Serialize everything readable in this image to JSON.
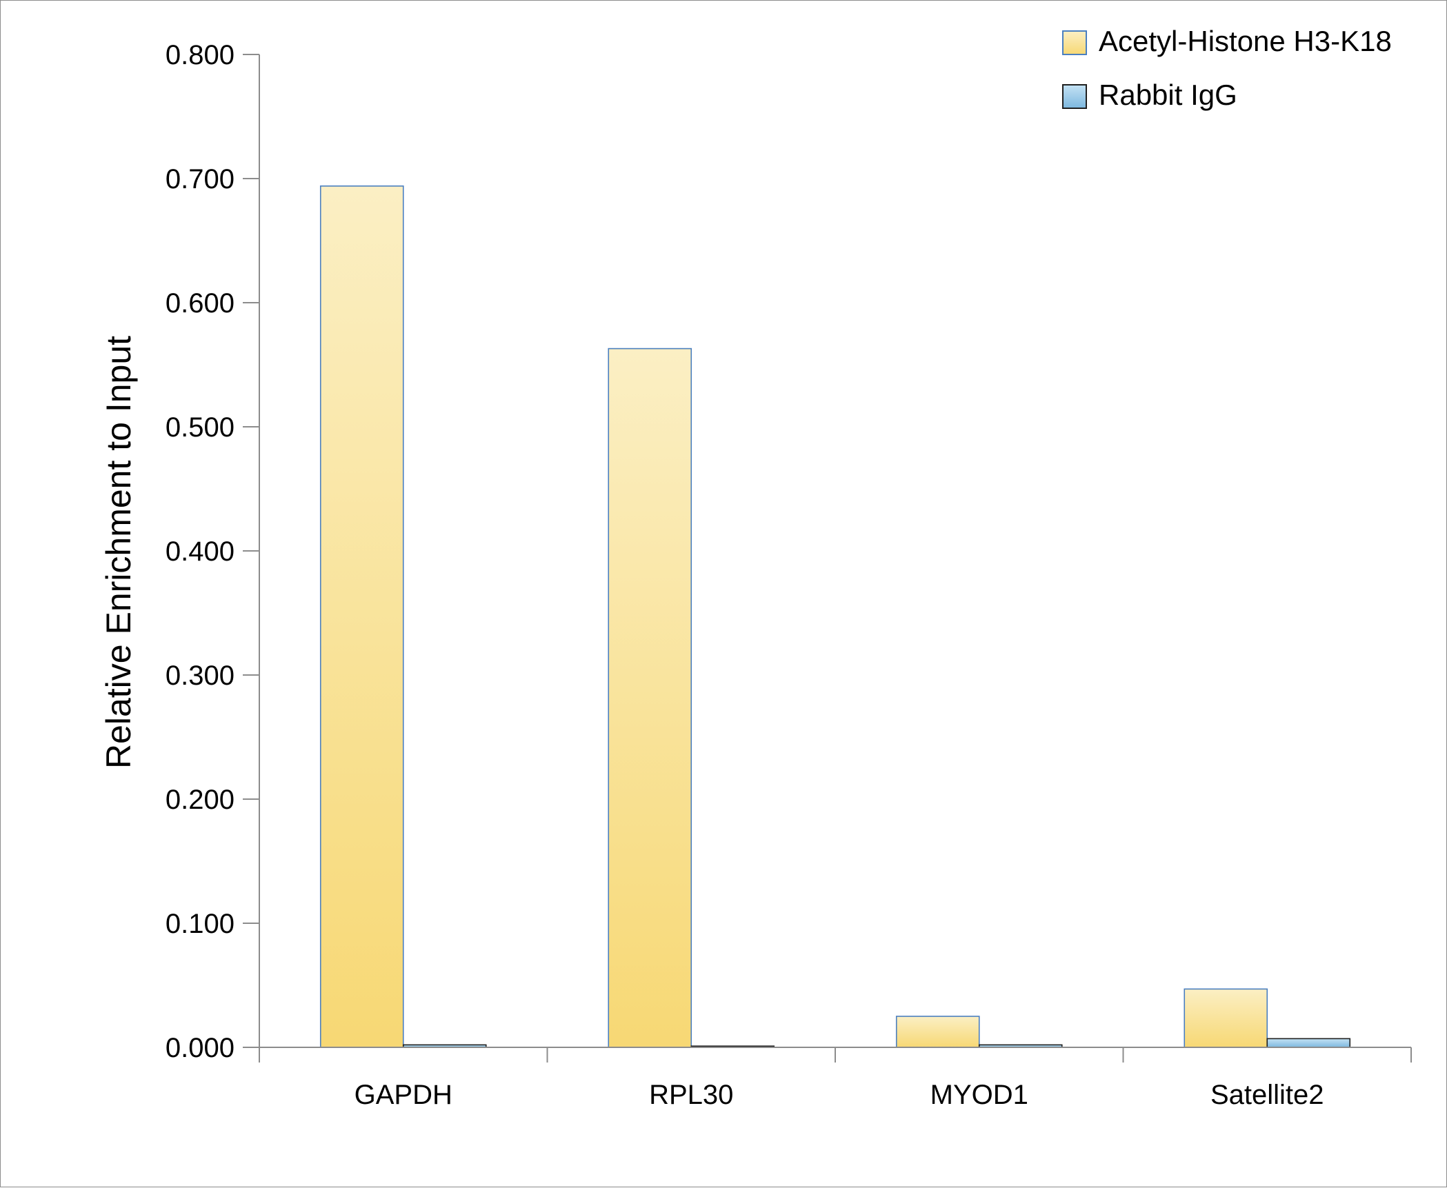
{
  "chart_data": {
    "type": "bar",
    "title": "",
    "xlabel": "",
    "ylabel": "Relative Enrichment to Input",
    "categories": [
      "GAPDH",
      "RPL30",
      "MYOD1",
      "Satellite2"
    ],
    "series": [
      {
        "name": "Acetyl-Histone H3-K18",
        "values": [
          0.694,
          0.563,
          0.025,
          0.047
        ],
        "color": "#f7dc7e",
        "edge": "#4a7fc0"
      },
      {
        "name": "Rabbit IgG",
        "values": [
          0.002,
          0.001,
          0.002,
          0.007
        ],
        "color": "#8fc3e4",
        "edge": "#1f1f1f"
      }
    ],
    "ylim": [
      0,
      0.8
    ],
    "yticks": [
      "0.000",
      "0.100",
      "0.200",
      "0.300",
      "0.400",
      "0.500",
      "0.600",
      "0.700",
      "0.800"
    ],
    "legend_position": "top-right",
    "grid": false
  }
}
